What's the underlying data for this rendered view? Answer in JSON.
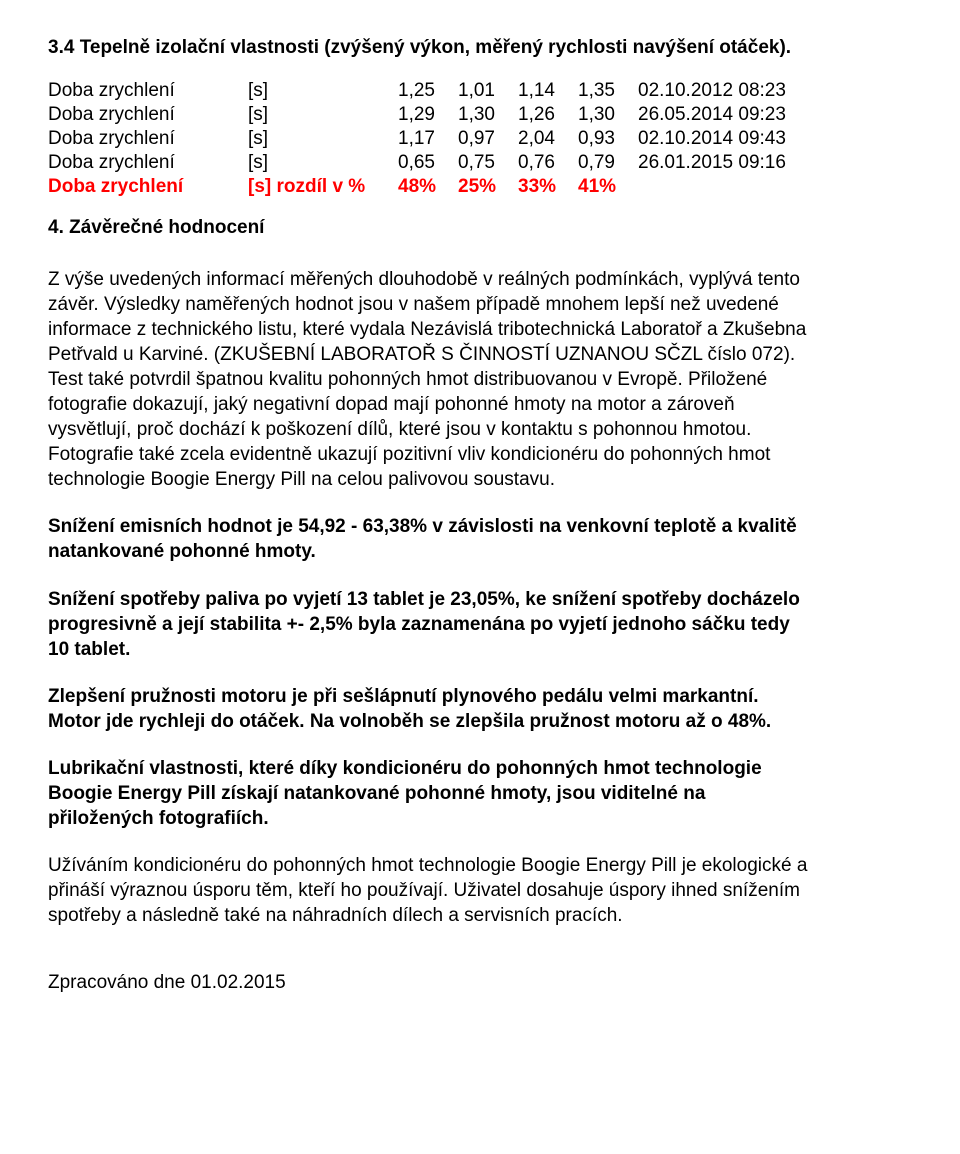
{
  "heading34": "3.4 Tepelně izolační vlastnosti (zvýšený výkon, měřený rychlosti navýšení otáček).",
  "table": {
    "rows": [
      {
        "label": "Doba zrychlení",
        "unit": "[s]",
        "v1": "1,25",
        "v2": "1,01",
        "v3": "1,14",
        "v4": "1,35",
        "ts": "02.10.2012 08:23",
        "hl": false
      },
      {
        "label": "Doba zrychlení",
        "unit": "[s]",
        "v1": "1,29",
        "v2": "1,30",
        "v3": "1,26",
        "v4": "1,30",
        "ts": "26.05.2014 09:23",
        "hl": false
      },
      {
        "label": "Doba zrychlení",
        "unit": "[s]",
        "v1": "1,17",
        "v2": "0,97",
        "v3": "2,04",
        "v4": "0,93",
        "ts": "02.10.2014 09:43",
        "hl": false
      },
      {
        "label": "Doba zrychlení",
        "unit": "[s]",
        "v1": "0,65",
        "v2": "0,75",
        "v3": "0,76",
        "v4": "0,79",
        "ts": "26.01.2015 09:16",
        "hl": false
      },
      {
        "label": "Doba zrychlení",
        "unit": "[s] rozdíl v %",
        "v1": "48%",
        "v2": "25%",
        "v3": "33%",
        "v4": "41%",
        "ts": "",
        "hl": true
      }
    ]
  },
  "heading4": "4. Závěrečné hodnocení",
  "para1": "Z výše uvedených informací měřených dlouhodobě v reálných podmínkách, vyplývá tento závěr. Výsledky naměřených hodnot jsou v našem případě mnohem lepší než uvedené informace z technického listu, které vydala Nezávislá tribotechnická Laboratoř a Zkušebna Petřvald u Karviné. (ZKUŠEBNÍ LABORATOŘ S ČINNOSTÍ UZNANOU SČZL číslo 072). Test také potvrdil špatnou kvalitu pohonných hmot distribuovanou v Evropě. Přiložené fotografie dokazují, jaký negativní dopad mají pohonné hmoty na motor a zároveň vysvětlují, proč dochází k poškození dílů, které jsou v kontaktu s pohonnou hmotou. Fotografie také zcela evidentně ukazují pozitivní vliv kondicionéru do pohonných hmot technologie Boogie Energy Pill na celou palivovou soustavu.",
  "para2": "Snížení emisních hodnot je 54,92 - 63,38% v závislosti na venkovní teplotě a kvalitě natankované pohonné hmoty.",
  "para3": "Snížení spotřeby paliva po vyjetí 13 tablet je 23,05%, ke snížení spotřeby docházelo progresivně a její stabilita +- 2,5% byla zaznamenána po vyjetí jednoho sáčku tedy 10 tablet.",
  "para4": " Zlepšení pružnosti motoru je při sešlápnutí plynového pedálu velmi markantní. Motor jde rychleji do otáček.  Na volnoběh se zlepšila pružnost motoru až o 48%.",
  "para5": "Lubrikační vlastnosti, které díky kondicionéru do pohonných hmot technologie Boogie Energy Pill získají natankované pohonné hmoty, jsou viditelné na přiložených fotografiích.",
  "para6": "Užíváním kondicionéru do pohonných hmot technologie Boogie Energy Pill je ekologické a přináší výraznou úsporu těm, kteří ho používají. Uživatel dosahuje úspory ihned snížením spotřeby a následně také na náhradních dílech a servisních pracích.",
  "footer": "Zpracováno dne 01.02.2015"
}
